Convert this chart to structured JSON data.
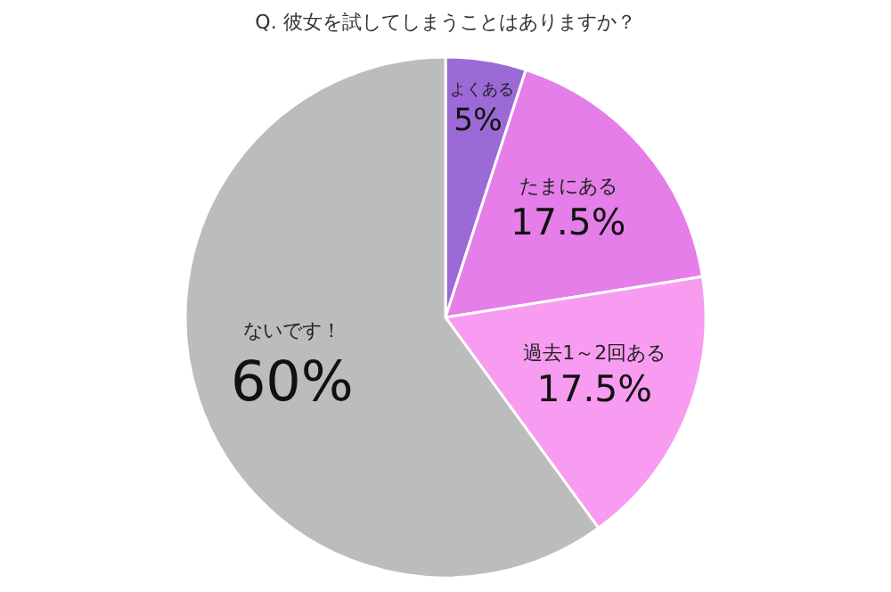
{
  "chart_data": {
    "type": "pie",
    "title": "Q. 彼女を試してしまうことはありますか？",
    "categories": [
      "よくある",
      "たまにある",
      "過去1～2回ある",
      "ないです！"
    ],
    "values": [
      5,
      17.5,
      17.5,
      60
    ],
    "value_labels": [
      "5%",
      "17.5%",
      "17.5%",
      "60%"
    ],
    "colors": [
      "#9c6ad6",
      "#e57ee8",
      "#f79cf0",
      "#bcbcbc"
    ],
    "legend": false
  }
}
